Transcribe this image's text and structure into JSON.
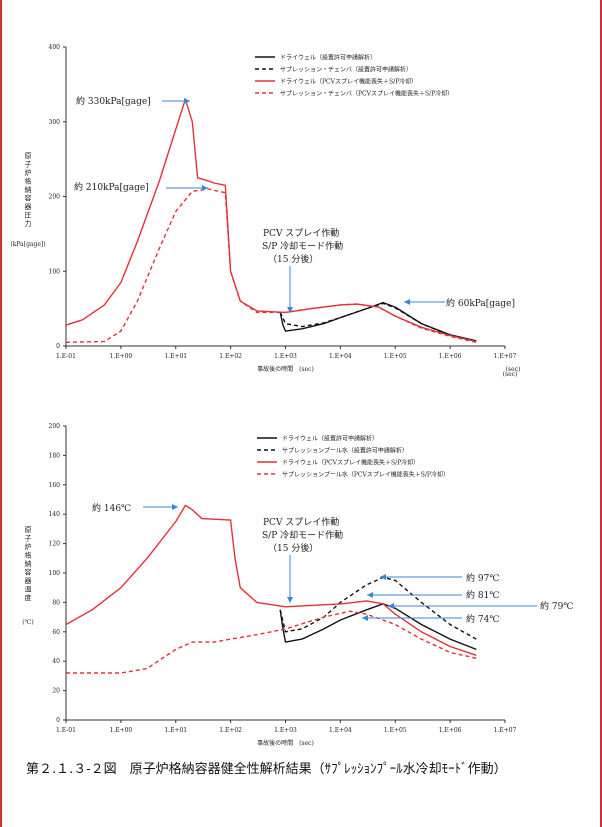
{
  "caption": "第２.１.３-２図　原子炉格納容器健全性解析結果（ｻﾌﾟﾚｯｼｮﾝﾌﾟｰﾙ水冷却ﾓｰﾄﾞ作動）",
  "colors": {
    "black": "#111111",
    "red": "#e0323a",
    "axis": "#333333",
    "arrow": "#3a86d6"
  },
  "chart_data": [
    {
      "type": "line",
      "ylabel": "原子炉格納容器圧力",
      "ylabel2": "(kPa[gage])",
      "xlabel": "事故後の時間　(sec)",
      "xunit": "(sec)",
      "x_scale": "log",
      "xlim": [
        0.1,
        10000000
      ],
      "ylim": [
        0,
        400
      ],
      "yticks": [
        "0",
        "100",
        "200",
        "300",
        "400"
      ],
      "xticks": [
        "1.E-01",
        "1.E+00",
        "1.E+01",
        "1.E+02",
        "1.E+03",
        "1.E+04",
        "1.E+05",
        "1.E+06",
        "1.E+07"
      ],
      "legend": [
        "ドライウェル（設置許可申請解析）",
        "サプレッション・チェンバ（設置許可申請解析）",
        "ドライウェル（PCVスプレイ機能喪失＋S/P冷却）",
        "サプレッション・チェンバ（PCVスプレイ機能喪失＋S/P冷却）"
      ],
      "series": [
        {
          "name": "ドライウェル（設置許可申請解析）",
          "color": "#111111",
          "dash": false,
          "points": [
            [
              800,
              45
            ],
            [
              900,
              28
            ],
            [
              1000,
              20
            ],
            [
              2000,
              23
            ],
            [
              5000,
              30
            ],
            [
              10000,
              38
            ],
            [
              30000,
              50
            ],
            [
              60000,
              58
            ],
            [
              100000,
              52
            ],
            [
              300000,
              30
            ],
            [
              1000000,
              15
            ],
            [
              3000000,
              7
            ]
          ]
        },
        {
          "name": "サプレッション・チェンバ（設置許可申請解析）",
          "color": "#111111",
          "dash": true,
          "points": [
            [
              800,
              45
            ],
            [
              1000,
              30
            ],
            [
              2000,
              26
            ],
            [
              5000,
              31
            ],
            [
              10000,
              38
            ],
            [
              30000,
              50
            ],
            [
              60000,
              57
            ],
            [
              100000,
              51
            ],
            [
              300000,
              30
            ],
            [
              1000000,
              14
            ],
            [
              3000000,
              6
            ]
          ]
        },
        {
          "name": "ドライウェル（PCVスプレイ機能喪失＋S/P冷却）",
          "color": "#e0323a",
          "dash": false,
          "points": [
            [
              0.1,
              28
            ],
            [
              0.2,
              35
            ],
            [
              0.5,
              55
            ],
            [
              1,
              85
            ],
            [
              2,
              140
            ],
            [
              5,
              220
            ],
            [
              10,
              290
            ],
            [
              15,
              330
            ],
            [
              20,
              300
            ],
            [
              25,
              225
            ],
            [
              35,
              222
            ],
            [
              50,
              218
            ],
            [
              80,
              215
            ],
            [
              100,
              100
            ],
            [
              150,
              60
            ],
            [
              300,
              47
            ],
            [
              1000,
              45
            ],
            [
              3000,
              50
            ],
            [
              10000,
              55
            ],
            [
              20000,
              56
            ],
            [
              50000,
              52
            ],
            [
              100000,
              40
            ],
            [
              300000,
              25
            ],
            [
              1000000,
              14
            ],
            [
              3000000,
              6
            ]
          ]
        },
        {
          "name": "サプレッション・チェンバ（PCVスプレイ機能喪失＋S/P冷却）",
          "color": "#e0323a",
          "dash": true,
          "points": [
            [
              0.1,
              5
            ],
            [
              0.5,
              6
            ],
            [
              1,
              20
            ],
            [
              2,
              60
            ],
            [
              5,
              130
            ],
            [
              10,
              180
            ],
            [
              20,
              207
            ],
            [
              40,
              210
            ],
            [
              80,
              205
            ],
            [
              100,
              100
            ],
            [
              150,
              60
            ],
            [
              300,
              45
            ],
            [
              1000,
              45
            ],
            [
              3000,
              50
            ],
            [
              10000,
              55
            ],
            [
              20000,
              56
            ],
            [
              50000,
              52
            ],
            [
              100000,
              40
            ],
            [
              300000,
              24
            ],
            [
              1000000,
              13
            ],
            [
              3000000,
              5
            ]
          ]
        }
      ],
      "annotations": [
        "約 330kPa[gage]",
        "約 210kPa[gage]",
        "約 60kPa[gage]",
        "PCV スプレイ作動",
        "S/P 冷却モード作動",
        "（15 分後）"
      ]
    },
    {
      "type": "line",
      "ylabel": "原子炉格納容器温度",
      "ylabel2": "(℃)",
      "xlabel": "事故後の時間　(sec)",
      "x_scale": "log",
      "xlim": [
        0.1,
        10000000
      ],
      "ylim": [
        0,
        200
      ],
      "yticks": [
        "0",
        "20",
        "40",
        "60",
        "80",
        "100",
        "120",
        "140",
        "160",
        "180",
        "200"
      ],
      "xticks": [
        "1.E-01",
        "1.E+00",
        "1.E+01",
        "1.E+02",
        "1.E+03",
        "1.E+04",
        "1.E+05",
        "1.E+06",
        "1.E+07"
      ],
      "legend": [
        "ドライウェル（設置許可申請解析）",
        "サプレッションプール水（設置許可申請解析）",
        "ドライウェル（PCVスプレイ機能喪失＋S/P冷却）",
        "サプレッションプール水（PCVスプレイ機能喪失＋S/P冷却）"
      ],
      "series": [
        {
          "name": "ドライウェル（設置許可申請解析）",
          "color": "#111111",
          "dash": false,
          "points": [
            [
              800,
              75
            ],
            [
              900,
              62
            ],
            [
              1000,
              53
            ],
            [
              2000,
              55
            ],
            [
              5000,
              62
            ],
            [
              10000,
              68
            ],
            [
              30000,
              75
            ],
            [
              60000,
              79
            ],
            [
              100000,
              76
            ],
            [
              300000,
              65
            ],
            [
              1000000,
              55
            ],
            [
              3000000,
              48
            ]
          ]
        },
        {
          "name": "サプレッションプール水（設置許可申請解析）",
          "color": "#111111",
          "dash": true,
          "points": [
            [
              800,
              75
            ],
            [
              1000,
              60
            ],
            [
              2000,
              62
            ],
            [
              5000,
              70
            ],
            [
              10000,
              80
            ],
            [
              30000,
              92
            ],
            [
              60000,
              97
            ],
            [
              100000,
              95
            ],
            [
              300000,
              80
            ],
            [
              1000000,
              65
            ],
            [
              3000000,
              55
            ]
          ]
        },
        {
          "name": "ドライウェル（PCVスプレイ機能喪失＋S/P冷却）",
          "color": "#e0323a",
          "dash": false,
          "points": [
            [
              0.1,
              65
            ],
            [
              0.3,
              75
            ],
            [
              1,
              90
            ],
            [
              3,
              110
            ],
            [
              10,
              135
            ],
            [
              15,
              146
            ],
            [
              20,
              143
            ],
            [
              30,
              137
            ],
            [
              100,
              136
            ],
            [
              120,
              110
            ],
            [
              150,
              90
            ],
            [
              300,
              80
            ],
            [
              1000,
              77
            ],
            [
              10000,
              79
            ],
            [
              30000,
              81
            ],
            [
              60000,
              79
            ],
            [
              100000,
              72
            ],
            [
              300000,
              60
            ],
            [
              1000000,
              50
            ],
            [
              3000000,
              44
            ]
          ]
        },
        {
          "name": "サプレッションプール水（PCVスプレイ機能喪失＋S/P冷却）",
          "color": "#e0323a",
          "dash": true,
          "points": [
            [
              0.1,
              32
            ],
            [
              1,
              32
            ],
            [
              3,
              35
            ],
            [
              10,
              48
            ],
            [
              20,
              53
            ],
            [
              50,
              53
            ],
            [
              100,
              55
            ],
            [
              300,
              58
            ],
            [
              1000,
              62
            ],
            [
              5000,
              70
            ],
            [
              15000,
              74
            ],
            [
              30000,
              72
            ],
            [
              100000,
              65
            ],
            [
              300000,
              55
            ],
            [
              1000000,
              46
            ],
            [
              3000000,
              42
            ]
          ]
        }
      ],
      "annotations": [
        "約 146℃",
        "約 97℃",
        "約 81℃",
        "約 79℃",
        "約 74℃",
        "PCV スプレイ作動",
        "S/P 冷却モード作動",
        "（15 分後）"
      ]
    }
  ]
}
